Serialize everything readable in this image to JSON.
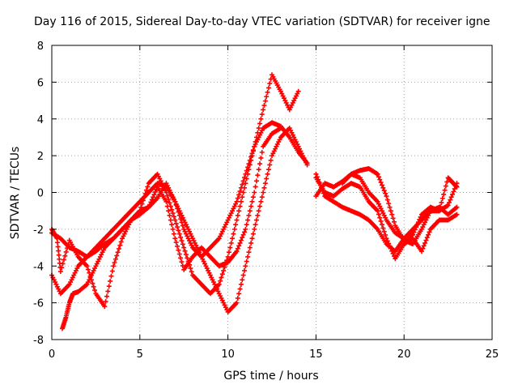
{
  "chart_data": {
    "type": "scatter",
    "title": "Day 116 of 2015, Sidereal Day-to-day VTEC variation (SDTVAR) for receiver igne",
    "xlabel": "GPS time / hours",
    "ylabel": "SDTVAR / TECUs",
    "xlim": [
      0,
      25
    ],
    "ylim": [
      -8,
      8
    ],
    "x_ticks": [
      "0",
      "5",
      "10",
      "15",
      "20",
      "25"
    ],
    "y_ticks": [
      "-8",
      "-6",
      "-4",
      "-2",
      "0",
      "2",
      "4",
      "6",
      "8"
    ],
    "grid": true,
    "marker": "+",
    "color": "#ff0000",
    "series": [
      {
        "x": [
          0.0,
          0.5,
          1.0,
          1.5,
          2.0,
          2.5,
          3.0,
          3.5,
          4.0,
          4.5,
          5.0,
          5.5,
          6.0,
          6.5,
          7.0,
          7.5,
          8.0,
          8.5,
          9.0,
          9.5,
          10.0,
          10.5,
          11.0,
          11.5,
          12.0,
          12.5,
          13.0,
          13.5,
          14.0,
          14.5
        ],
        "y": [
          -2.2,
          -2.5,
          -3.0,
          -3.2,
          -3.5,
          -3.0,
          -2.5,
          -2.0,
          -1.5,
          -1.0,
          -0.5,
          0.0,
          0.5,
          0.3,
          -0.5,
          -1.5,
          -2.5,
          -3.5,
          -4.5,
          -5.5,
          -6.5,
          -6.0,
          -4.0,
          -2.0,
          0.0,
          2.0,
          3.0,
          3.5,
          2.5,
          1.5
        ]
      },
      {
        "x": [
          0.0,
          0.5,
          1.0,
          1.5,
          2.0,
          2.5,
          3.0,
          3.5,
          4.0,
          4.5,
          5.0,
          5.5,
          6.0,
          6.5,
          7.0,
          7.5,
          8.0,
          8.5,
          9.0,
          9.5,
          10.0,
          10.5,
          11.0,
          11.5,
          12.0,
          12.5,
          13.0,
          13.5,
          14.0
        ],
        "y": [
          -4.5,
          -5.5,
          -5.0,
          -4.0,
          -3.5,
          -3.2,
          -2.8,
          -2.5,
          -2.0,
          -1.5,
          -1.0,
          0.5,
          1.0,
          0.0,
          -1.5,
          -3.0,
          -4.5,
          -5.0,
          -5.5,
          -5.0,
          -3.5,
          -1.5,
          0.5,
          2.5,
          4.5,
          6.4,
          5.5,
          4.5,
          5.5
        ]
      },
      {
        "x": [
          0.6,
          0.8,
          1.0,
          1.2,
          1.5,
          2.0,
          2.5,
          3.0,
          3.5,
          4.0,
          4.5,
          5.0,
          5.5,
          6.0,
          6.5,
          7.0,
          7.5,
          8.0,
          8.5,
          9.0,
          9.5,
          10.0,
          10.5,
          11.0,
          11.5,
          12.0,
          12.5,
          13.0,
          13.5,
          14.0,
          14.5
        ],
        "y": [
          -7.4,
          -6.8,
          -6.0,
          -5.5,
          -5.4,
          -5.0,
          -4.0,
          -3.0,
          -2.5,
          -2.0,
          -1.5,
          -1.2,
          -0.8,
          -0.3,
          0.5,
          -0.5,
          -2.0,
          -3.0,
          -3.5,
          -3.0,
          -2.5,
          -1.5,
          -0.5,
          1.0,
          2.5,
          3.5,
          3.8,
          3.6,
          3.0,
          2.2,
          1.6
        ]
      },
      {
        "x": [
          0.0,
          0.3,
          0.5,
          1.0,
          1.5,
          2.0,
          2.5,
          3.0,
          3.5,
          4.0,
          4.5,
          5.0,
          5.5,
          6.0,
          6.5,
          7.0,
          7.5,
          8.0,
          8.5,
          9.0,
          9.5,
          10.0,
          10.5,
          11.0,
          11.5,
          12.0,
          12.5,
          13.0
        ],
        "y": [
          -2.0,
          -2.5,
          -4.3,
          -2.6,
          -3.5,
          -4.0,
          -5.5,
          -6.2,
          -4.0,
          -2.5,
          -1.5,
          -1.0,
          -0.8,
          0.3,
          -0.5,
          -2.5,
          -4.2,
          -3.5,
          -3.0,
          -3.5,
          -4.0,
          -3.8,
          -3.2,
          -2.0,
          0.0,
          2.5,
          3.2,
          3.5
        ]
      },
      {
        "x": [
          15.0,
          15.5,
          16.0,
          16.5,
          17.0,
          17.5,
          18.0,
          18.5,
          19.0,
          19.5,
          20.0,
          20.5,
          21.0,
          21.5,
          22.0,
          22.5,
          23.0
        ],
        "y": [
          1.0,
          -0.2,
          -0.5,
          -0.8,
          -1.0,
          -1.2,
          -1.5,
          -2.0,
          -2.8,
          -3.2,
          -2.5,
          -2.0,
          -1.5,
          -1.0,
          -0.8,
          -1.2,
          -0.8
        ]
      },
      {
        "x": [
          15.0,
          15.5,
          16.0,
          16.5,
          17.0,
          17.5,
          18.0,
          18.5,
          19.0,
          19.5,
          20.0,
          20.5,
          21.0,
          21.5,
          22.0,
          22.5,
          23.0
        ],
        "y": [
          -0.2,
          0.5,
          0.3,
          0.6,
          1.0,
          0.8,
          0.0,
          -0.5,
          -1.5,
          -2.2,
          -2.5,
          -2.3,
          -1.2,
          -0.8,
          -1.0,
          -0.7,
          0.5
        ]
      },
      {
        "x": [
          15.0,
          15.5,
          16.0,
          16.5,
          17.0,
          17.5,
          18.0,
          18.5,
          19.0,
          19.5,
          20.0,
          20.5,
          21.0,
          21.5,
          22.0,
          22.5,
          23.0
        ],
        "y": [
          0.8,
          0.0,
          -0.2,
          0.2,
          0.5,
          0.3,
          -0.5,
          -1.0,
          -2.5,
          -3.6,
          -2.8,
          -2.5,
          -3.2,
          -2.0,
          -1.5,
          -1.5,
          -1.2
        ]
      },
      {
        "x": [
          16.5,
          17.0,
          17.5,
          18.0,
          18.5,
          19.0,
          19.5,
          20.0,
          20.5,
          21.0,
          21.5,
          22.0,
          22.5,
          22.8,
          23.0
        ],
        "y": [
          0.5,
          1.0,
          1.2,
          1.3,
          1.0,
          -0.2,
          -1.8,
          -2.6,
          -2.8,
          -2.0,
          -1.0,
          -1.0,
          0.8,
          0.5,
          0.3
        ]
      }
    ]
  }
}
